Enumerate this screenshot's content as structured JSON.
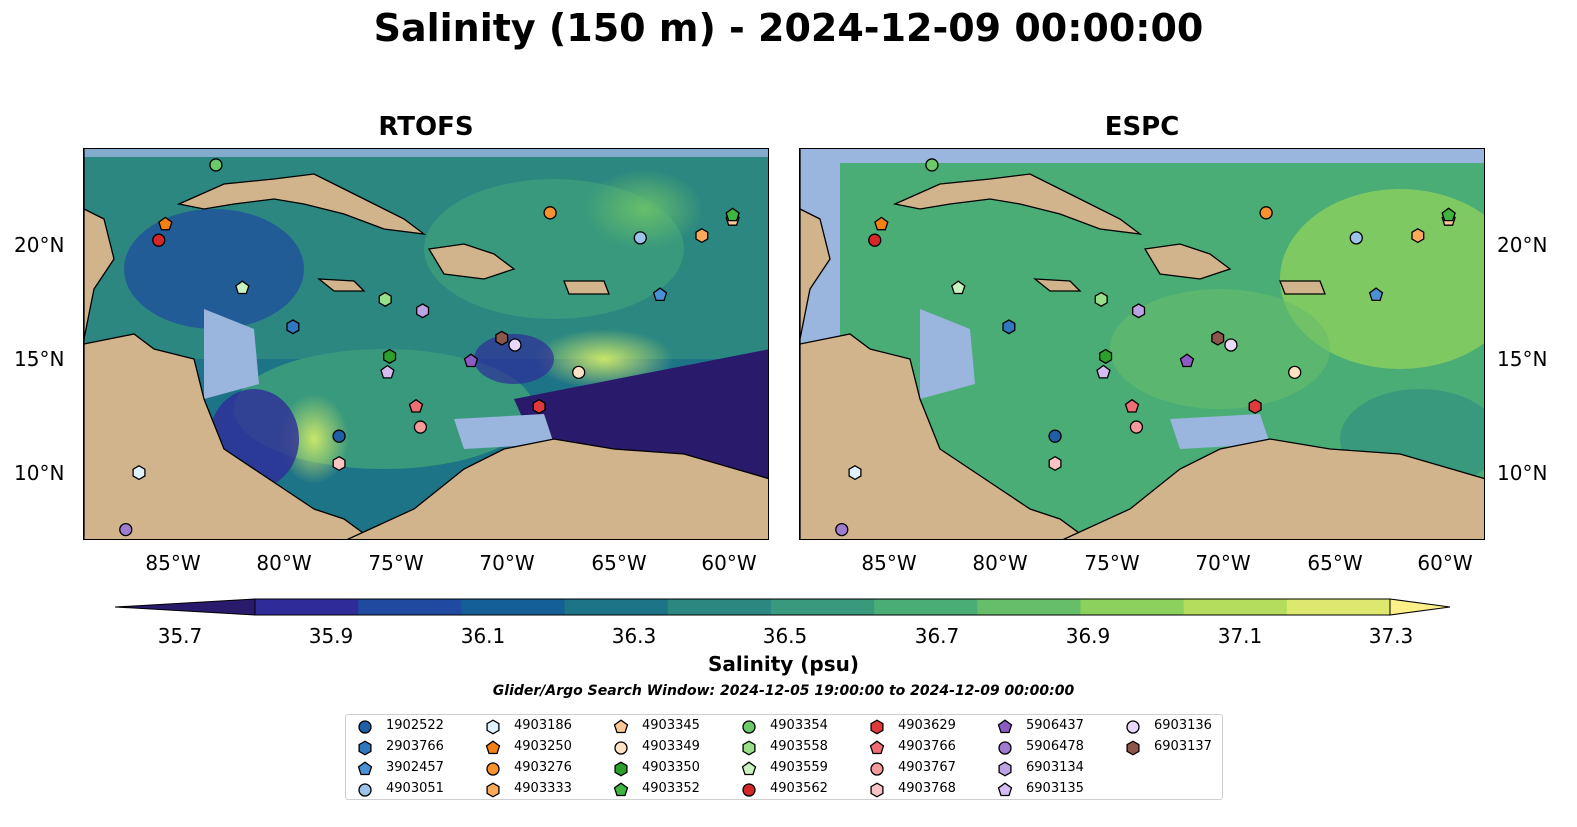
{
  "title": "Salinity (150 m) - 2024-12-09 00:00:00",
  "panels": [
    {
      "title": "RTOFS"
    },
    {
      "title": "ESPC"
    }
  ],
  "lat_labels": [
    "20°N",
    "15°N",
    "10°N"
  ],
  "lon_labels": [
    "85°W",
    "80°W",
    "75°W",
    "70°W",
    "65°W",
    "60°W"
  ],
  "colorbar": {
    "label": "Salinity (psu)",
    "ticks": [
      "35.7",
      "35.9",
      "36.1",
      "36.3",
      "36.5",
      "36.7",
      "36.9",
      "37.1",
      "37.3"
    ],
    "colormap": [
      "#2a1a6b",
      "#2f2c9a",
      "#1f4aa0",
      "#155f97",
      "#1d7487",
      "#2b8780",
      "#38997d",
      "#4aad75",
      "#67be6a",
      "#8cd05e",
      "#b4dd5d",
      "#dde86f",
      "#fdf089"
    ]
  },
  "search_window": "Glider/Argo Search Window: 2024-12-05 19:00:00 to 2024-12-09 00:00:00",
  "floats": [
    {
      "id": "1902522",
      "shape": "circle",
      "color": "#1f5fa8"
    },
    {
      "id": "2903766",
      "shape": "hexagon",
      "color": "#2f78c0"
    },
    {
      "id": "3902457",
      "shape": "pentagon",
      "color": "#4a90d6"
    },
    {
      "id": "4903051",
      "shape": "circle",
      "color": "#9cc4ea"
    },
    {
      "id": "4903186",
      "shape": "hexagon",
      "color": "#dff2fb"
    },
    {
      "id": "4903250",
      "shape": "pentagon",
      "color": "#f57f13"
    },
    {
      "id": "4903276",
      "shape": "circle",
      "color": "#f8912e"
    },
    {
      "id": "4903333",
      "shape": "hexagon",
      "color": "#fca95a"
    },
    {
      "id": "4903345",
      "shape": "pentagon",
      "color": "#fdc896"
    },
    {
      "id": "4903349",
      "shape": "circle",
      "color": "#fde1c4"
    },
    {
      "id": "4903350",
      "shape": "hexagon",
      "color": "#2ba02b"
    },
    {
      "id": "4903352",
      "shape": "pentagon",
      "color": "#3fb53f"
    },
    {
      "id": "4903354",
      "shape": "circle",
      "color": "#6bcb6b"
    },
    {
      "id": "4903558",
      "shape": "hexagon",
      "color": "#98df8a"
    },
    {
      "id": "4903559",
      "shape": "pentagon",
      "color": "#c8f2c0"
    },
    {
      "id": "4903562",
      "shape": "circle",
      "color": "#d62728"
    },
    {
      "id": "4903629",
      "shape": "hexagon",
      "color": "#e0393c"
    },
    {
      "id": "4903766",
      "shape": "pentagon",
      "color": "#ee6e73"
    },
    {
      "id": "4903767",
      "shape": "circle",
      "color": "#f49a9a"
    },
    {
      "id": "4903768",
      "shape": "hexagon",
      "color": "#fbc4c4"
    },
    {
      "id": "5906437",
      "shape": "pentagon",
      "color": "#8c5cc4"
    },
    {
      "id": "5906478",
      "shape": "circle",
      "color": "#a07cd0"
    },
    {
      "id": "6903134",
      "shape": "hexagon",
      "color": "#bca3e3"
    },
    {
      "id": "6903135",
      "shape": "pentagon",
      "color": "#d6bcf2"
    },
    {
      "id": "6903136",
      "shape": "circle",
      "color": "#ead8fa"
    },
    {
      "id": "6903137",
      "shape": "hexagon",
      "color": "#8c564b"
    }
  ],
  "observations": [
    {
      "id": "1902522",
      "lon": -77.9,
      "lat": 11.6
    },
    {
      "id": "2903766",
      "lon": -80.0,
      "lat": 16.4
    },
    {
      "id": "3902457",
      "lon": -63.3,
      "lat": 17.8
    },
    {
      "id": "4903051",
      "lon": -64.2,
      "lat": 20.3
    },
    {
      "id": "4903186",
      "lon": -87.0,
      "lat": 10.0
    },
    {
      "id": "4903250",
      "lon": -85.8,
      "lat": 20.9
    },
    {
      "id": "4903276",
      "lon": -68.3,
      "lat": 21.4
    },
    {
      "id": "4903333",
      "lon": -61.4,
      "lat": 20.4
    },
    {
      "id": "4903345",
      "lon": -60.0,
      "lat": 21.1
    },
    {
      "id": "4903349",
      "lon": -67.0,
      "lat": 14.4
    },
    {
      "id": "4903350",
      "lon": -75.6,
      "lat": 15.1
    },
    {
      "id": "4903352",
      "lon": -60.0,
      "lat": 21.3
    },
    {
      "id": "4903354",
      "lon": -83.5,
      "lat": 23.5
    },
    {
      "id": "4903558",
      "lon": -75.8,
      "lat": 17.6
    },
    {
      "id": "4903559",
      "lon": -82.3,
      "lat": 18.1
    },
    {
      "id": "4903562",
      "lon": -86.1,
      "lat": 20.2
    },
    {
      "id": "4903629",
      "lon": -68.8,
      "lat": 12.9
    },
    {
      "id": "4903766",
      "lon": -74.4,
      "lat": 12.9
    },
    {
      "id": "4903767",
      "lon": -74.2,
      "lat": 12.0
    },
    {
      "id": "4903768",
      "lon": -77.9,
      "lat": 10.4
    },
    {
      "id": "5906437",
      "lon": -71.9,
      "lat": 14.9
    },
    {
      "id": "5906478",
      "lon": -87.6,
      "lat": 7.5
    },
    {
      "id": "6903134",
      "lon": -74.1,
      "lat": 17.1
    },
    {
      "id": "6903135",
      "lon": -75.7,
      "lat": 14.4
    },
    {
      "id": "6903136",
      "lon": -69.9,
      "lat": 15.6
    },
    {
      "id": "6903137",
      "lon": -70.5,
      "lat": 15.9
    }
  ],
  "map_colors": {
    "land": "#d2b48c",
    "shelf": "#9ab5de",
    "coastline": "#000000"
  }
}
